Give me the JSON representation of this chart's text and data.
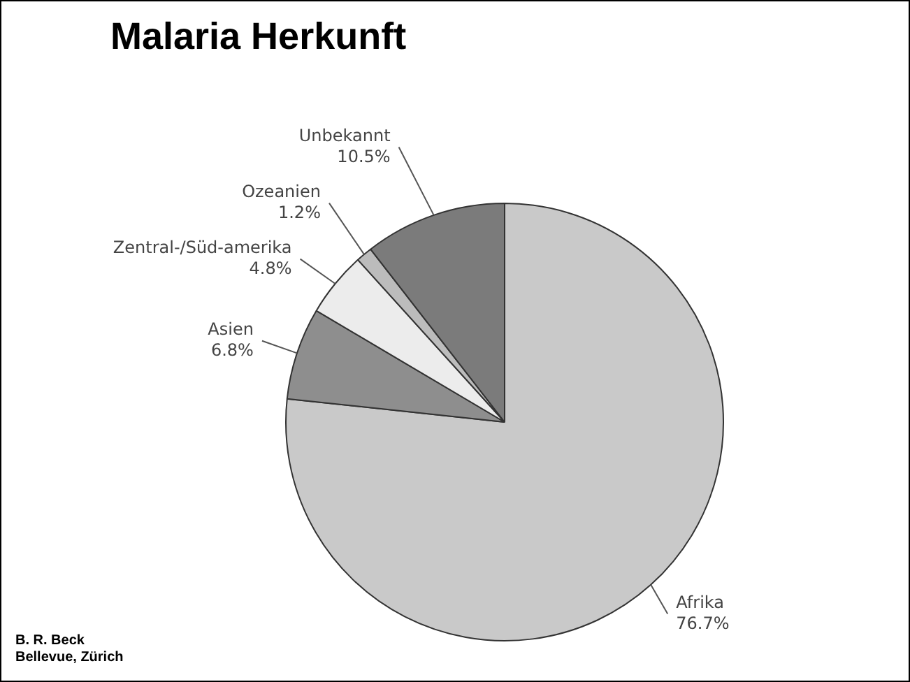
{
  "chart_data": {
    "type": "pie",
    "title": "Malaria Herkunft",
    "categories": [
      "Afrika",
      "Asien",
      "Zentral-/Süd-amerika",
      "Ozeanien",
      "Unbekannt"
    ],
    "values": [
      76.7,
      6.8,
      4.8,
      1.2,
      10.5
    ],
    "value_labels": [
      "76.7%",
      "6.8%",
      "4.8%",
      "1.2%",
      "10.5%"
    ],
    "colors": [
      "#c9c9c9",
      "#8e8e8e",
      "#ececec",
      "#bcbcbc",
      "#7b7b7b"
    ],
    "annotations": [
      "B. R. Beck",
      "Bellevue, Zürich"
    ],
    "legend": false
  }
}
